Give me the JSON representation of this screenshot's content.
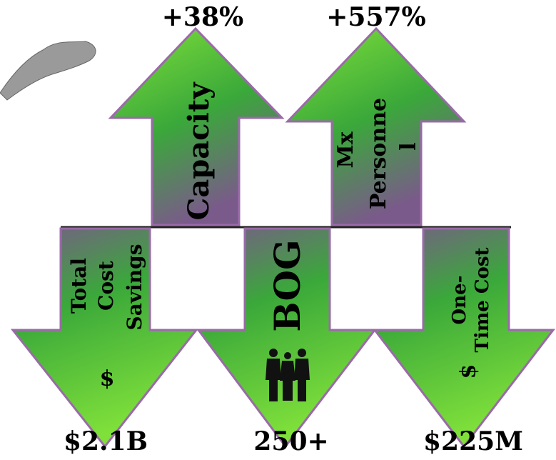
{
  "up_arrows": [
    {
      "label_lines": [
        "Capacity"
      ],
      "value": "+38%"
    },
    {
      "label_lines": [
        "Mx",
        "Personne",
        "l"
      ],
      "value": "+557%"
    }
  ],
  "down_arrows": [
    {
      "label_lines": [
        "Total",
        "Cost",
        "Savings"
      ],
      "symbol": "$",
      "value": "$2.1B"
    },
    {
      "label_lines": [
        "BOG"
      ],
      "value": "250+"
    },
    {
      "label_lines": [
        "One-",
        "Time Cost"
      ],
      "symbol": "$",
      "value": "$225M"
    }
  ]
}
